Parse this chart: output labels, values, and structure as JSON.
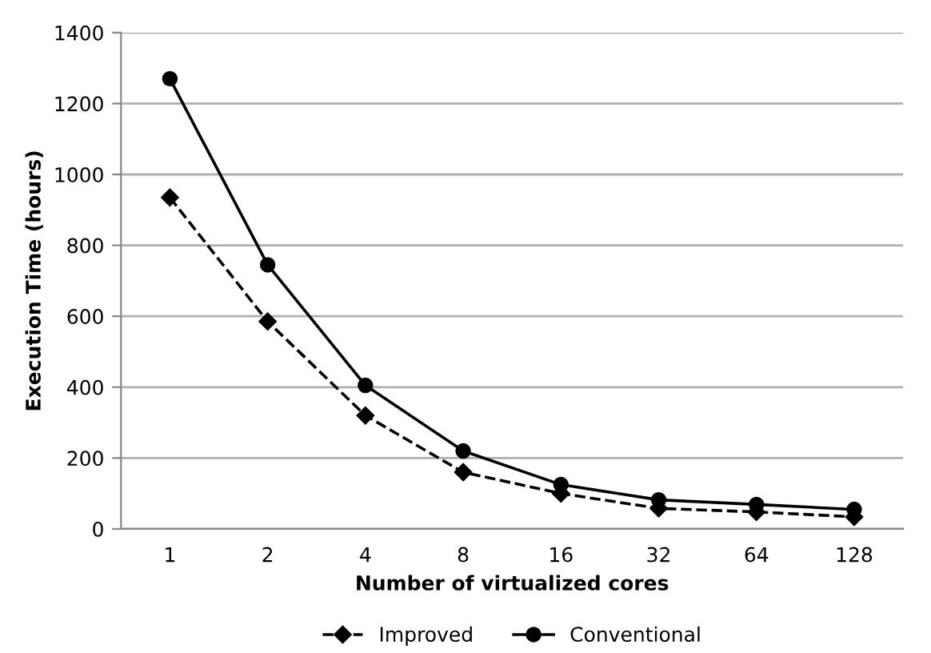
{
  "chart_data": {
    "type": "line",
    "xlabel": "Number of virtualized cores",
    "ylabel": "Execution Time (hours)",
    "categories": [
      "1",
      "2",
      "4",
      "8",
      "16",
      "32",
      "64",
      "128"
    ],
    "series": [
      {
        "name": "Improved",
        "color": "#000000",
        "marker": "diamond",
        "line_style": "dashed",
        "values": [
          935,
          585,
          320,
          160,
          100,
          58,
          48,
          34
        ]
      },
      {
        "name": "Conventional",
        "color": "#000000",
        "marker": "circle",
        "line_style": "solid",
        "values": [
          1270,
          745,
          405,
          220,
          125,
          82,
          69,
          55
        ]
      }
    ],
    "ylim": [
      0,
      1400
    ],
    "yticks": [
      0,
      200,
      400,
      600,
      800,
      1000,
      1200,
      1400
    ],
    "grid": "y",
    "legend": "bottom"
  }
}
